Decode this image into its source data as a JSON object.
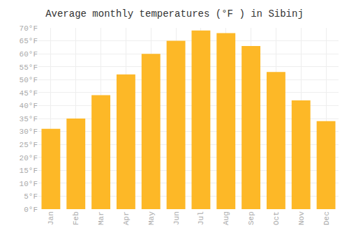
{
  "chart_data": {
    "type": "bar",
    "title": "Average monthly temperatures (°F ) in Sibinj",
    "categories": [
      "Jan",
      "Feb",
      "Mar",
      "Apr",
      "May",
      "Jun",
      "Jul",
      "Aug",
      "Sep",
      "Oct",
      "Nov",
      "Dec"
    ],
    "values": [
      31,
      35,
      44,
      52,
      60,
      65,
      69,
      68,
      63,
      53,
      42,
      34
    ],
    "color": "#FDB827",
    "ylim": [
      0,
      70
    ],
    "yticks": [
      {
        "value": 0,
        "label": "0°F"
      },
      {
        "value": 5,
        "label": "5°F"
      },
      {
        "value": 10,
        "label": "10°F"
      },
      {
        "value": 15,
        "label": "15°F"
      },
      {
        "value": 20,
        "label": "20°F"
      },
      {
        "value": 25,
        "label": "25°F"
      },
      {
        "value": 30,
        "label": "30°F"
      },
      {
        "value": 35,
        "label": "35°F"
      },
      {
        "value": 40,
        "label": "40°F"
      },
      {
        "value": 45,
        "label": "45°F"
      },
      {
        "value": 50,
        "label": "50°F"
      },
      {
        "value": 55,
        "label": "55°F"
      },
      {
        "value": 60,
        "label": "60°F"
      },
      {
        "value": 65,
        "label": "65°F"
      },
      {
        "value": 70,
        "label": "70°F"
      }
    ],
    "grid": true
  }
}
